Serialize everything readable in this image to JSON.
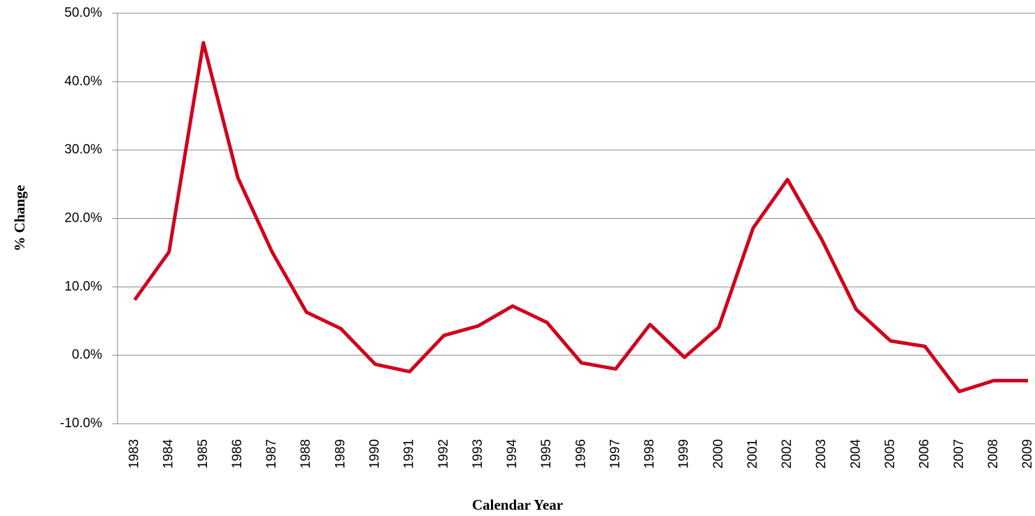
{
  "chart_data": {
    "type": "line",
    "xlabel": "Calendar Year",
    "ylabel": "% Change",
    "categories": [
      "1983",
      "1984",
      "1985",
      "1986",
      "1987",
      "1988",
      "1989",
      "1990",
      "1991",
      "1992",
      "1993",
      "1994",
      "1995",
      "1996",
      "1997",
      "1998",
      "1999",
      "2000",
      "2001",
      "2002",
      "2003",
      "2004",
      "2005",
      "2006",
      "2007",
      "2008",
      "2009"
    ],
    "series": [
      {
        "color": "#d0021b",
        "values": [
          8.1,
          15.1,
          45.7,
          26.0,
          15.1,
          6.3,
          3.9,
          -1.3,
          -2.4,
          2.9,
          4.3,
          7.2,
          4.8,
          -1.1,
          -2.0,
          4.5,
          -0.3,
          4.1,
          18.6,
          25.7,
          16.9,
          6.7,
          2.1,
          1.3,
          -5.3,
          -3.7,
          -3.7
        ]
      }
    ],
    "ylim": [
      -10,
      50
    ],
    "yticks": [
      {
        "value": -10,
        "label": "-10.0%"
      },
      {
        "value": 0,
        "label": "0.0%"
      },
      {
        "value": 10,
        "label": "10.0%"
      },
      {
        "value": 20,
        "label": "20.0%"
      },
      {
        "value": 30,
        "label": "30.0%"
      },
      {
        "value": 40,
        "label": "40.0%"
      },
      {
        "value": 50,
        "label": "50.0%"
      }
    ],
    "grid": true
  }
}
